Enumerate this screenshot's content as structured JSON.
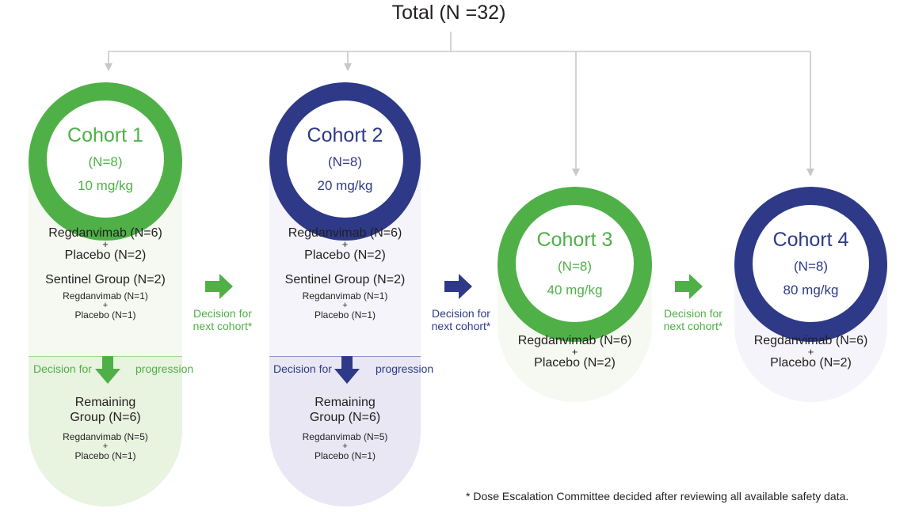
{
  "total_label": "Total (N =32)",
  "colors": {
    "green": "#4fb048",
    "navy": "#2e3a87",
    "connector": "#c8c8c8",
    "green_light": "#f5f9f1",
    "green_mid": "#e8f3e0",
    "navy_light": "#f4f4fa",
    "navy_mid": "#e8e7f3"
  },
  "cohorts": [
    {
      "title": "Cohort 1",
      "n": "(N=8)",
      "dose": "10 mg/kg",
      "main_drug": "Regdanvimab (N=6)",
      "main_plus": "+",
      "main_placebo": "Placebo (N=2)",
      "sentinel_title": "Sentinel Group (N=2)",
      "sentinel_drug": "Regdanvimab (N=1)",
      "sentinel_plus": "+",
      "sentinel_placebo": "Placebo (N=1)",
      "decision_left": "Decision for",
      "decision_right": "progression",
      "remaining_line1": "Remaining",
      "remaining_line2": "Group (N=6)",
      "remaining_drug": "Regdanvimab (N=5)",
      "remaining_plus": "+",
      "remaining_placebo": "Placebo (N=1)"
    },
    {
      "title": "Cohort 2",
      "n": "(N=8)",
      "dose": "20 mg/kg",
      "main_drug": "Regdanvimab (N=6)",
      "main_plus": "+",
      "main_placebo": "Placebo (N=2)",
      "sentinel_title": "Sentinel Group (N=2)",
      "sentinel_drug": "Regdanvimab (N=1)",
      "sentinel_plus": "+",
      "sentinel_placebo": "Placebo (N=1)",
      "decision_left": "Decision for",
      "decision_right": "progression",
      "remaining_line1": "Remaining",
      "remaining_line2": "Group (N=6)",
      "remaining_drug": "Regdanvimab (N=5)",
      "remaining_plus": "+",
      "remaining_placebo": "Placebo (N=1)"
    },
    {
      "title": "Cohort 3",
      "n": "(N=8)",
      "dose": "40 mg/kg",
      "main_drug": "Regdanvimab (N=6)",
      "main_plus": "+",
      "main_placebo": "Placebo (N=2)"
    },
    {
      "title": "Cohort 4",
      "n": "(N=8)",
      "dose": "80 mg/kg",
      "main_drug": "Regdanvimab (N=6)",
      "main_plus": "+",
      "main_placebo": "Placebo (N=2)"
    }
  ],
  "next_decisions": [
    {
      "line1": "Decision for",
      "line2": "next cohort*"
    },
    {
      "line1": "Decision for",
      "line2": "next cohort*"
    },
    {
      "line1": "Decision for",
      "line2": "next cohort*"
    }
  ],
  "footnote": "* Dose Escalation Committee decided after reviewing all available safety data."
}
